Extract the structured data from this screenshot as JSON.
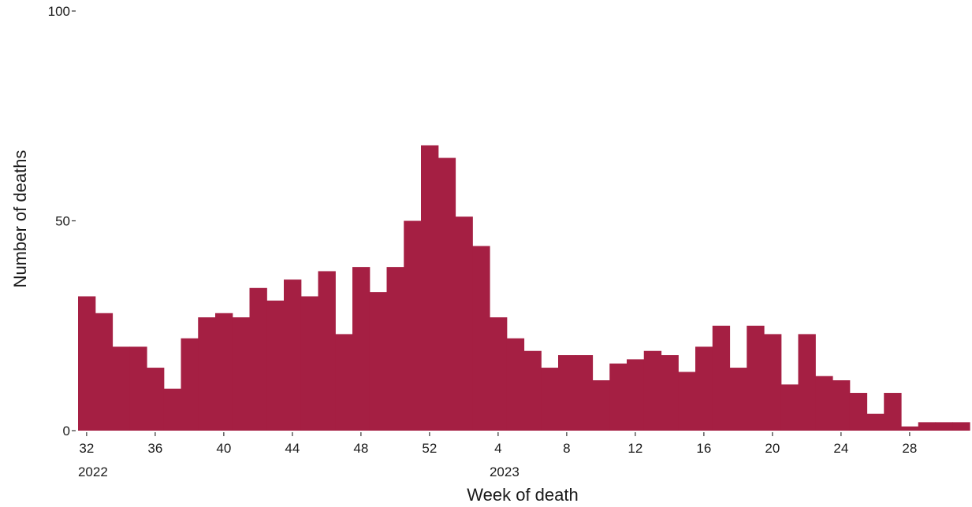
{
  "chart_data": {
    "type": "bar",
    "xlabel": "Week of death",
    "ylabel": "Number of deaths",
    "ylim": [
      0,
      100
    ],
    "yticks": [
      0,
      50,
      100
    ],
    "bar_color": "#a51f43",
    "grid": false,
    "x": [
      "2022-W32",
      "2022-W33",
      "2022-W34",
      "2022-W35",
      "2022-W36",
      "2022-W37",
      "2022-W38",
      "2022-W39",
      "2022-W40",
      "2022-W41",
      "2022-W42",
      "2022-W43",
      "2022-W44",
      "2022-W45",
      "2022-W46",
      "2022-W47",
      "2022-W48",
      "2022-W49",
      "2022-W50",
      "2022-W51",
      "2022-W52",
      "2023-W01",
      "2023-W02",
      "2023-W03",
      "2023-W04",
      "2023-W05",
      "2023-W06",
      "2023-W07",
      "2023-W08",
      "2023-W09",
      "2023-W10",
      "2023-W11",
      "2023-W12",
      "2023-W13",
      "2023-W14",
      "2023-W15",
      "2023-W16",
      "2023-W17",
      "2023-W18",
      "2023-W19",
      "2023-W20",
      "2023-W21",
      "2023-W22",
      "2023-W23",
      "2023-W24",
      "2023-W25",
      "2023-W26",
      "2023-W27",
      "2023-W28",
      "2023-W29",
      "2023-W30",
      "2023-W31"
    ],
    "values": [
      32,
      28,
      20,
      20,
      15,
      10,
      22,
      27,
      28,
      27,
      34,
      31,
      36,
      32,
      38,
      23,
      39,
      33,
      39,
      50,
      68,
      65,
      51,
      44,
      27,
      22,
      19,
      15,
      18,
      18,
      12,
      16,
      17,
      19,
      18,
      14,
      20,
      25,
      15,
      25,
      23,
      11,
      23,
      13,
      12,
      9,
      4,
      9,
      1,
      2,
      2,
      2
    ],
    "xticks": [
      {
        "label": "32",
        "sublabel": "2022"
      },
      {
        "label": "36",
        "sublabel": ""
      },
      {
        "label": "40",
        "sublabel": ""
      },
      {
        "label": "44",
        "sublabel": ""
      },
      {
        "label": "48",
        "sublabel": ""
      },
      {
        "label": "52",
        "sublabel": ""
      },
      {
        "label": "4",
        "sublabel": "2023"
      },
      {
        "label": "8",
        "sublabel": ""
      },
      {
        "label": "12",
        "sublabel": ""
      },
      {
        "label": "16",
        "sublabel": ""
      },
      {
        "label": "20",
        "sublabel": ""
      },
      {
        "label": "24",
        "sublabel": ""
      },
      {
        "label": "28",
        "sublabel": ""
      }
    ]
  }
}
